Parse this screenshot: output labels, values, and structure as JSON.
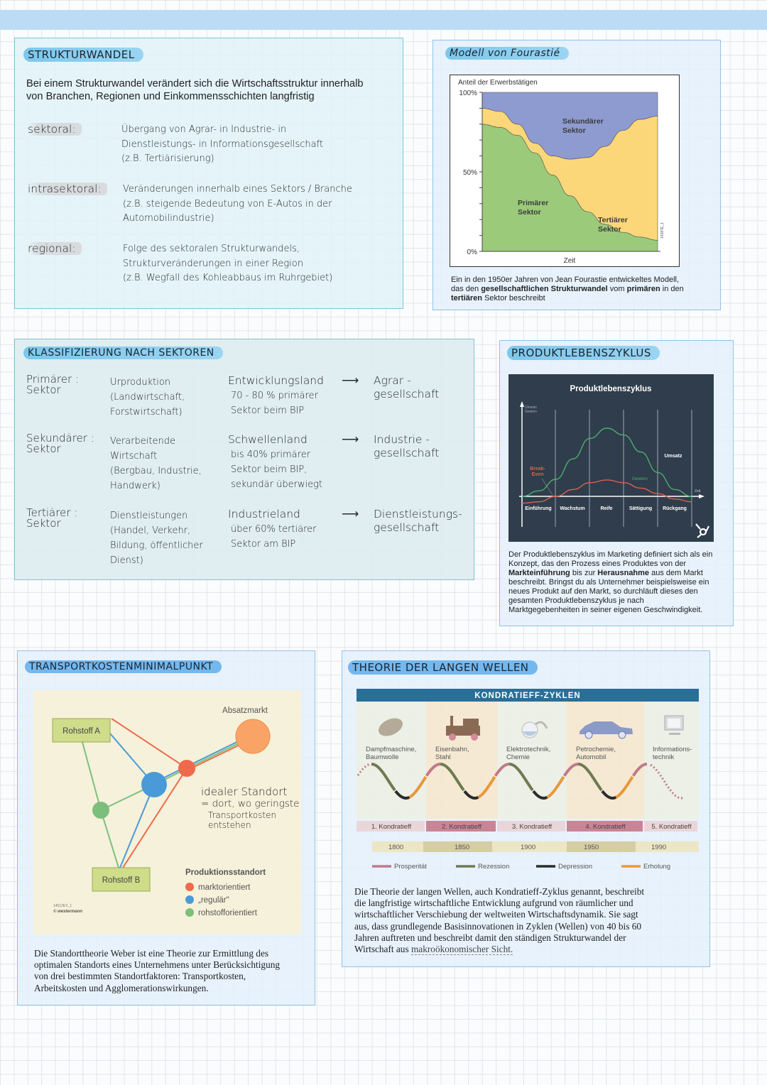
{
  "strukturwandel": {
    "title": "STRUKTURWANDEL",
    "intro": [
      "Bei einem Strukturwandel verändert sich die Wirtschaftsstruktur innerhalb",
      "von Branchen, Regionen und Einkommensschichten langfristig"
    ],
    "rows": [
      {
        "label": "sektoral:",
        "lines": [
          "Übergang von Agrar- in Industrie- in",
          "Dienstleistungs- in Informationsgesellschaft",
          "(z.B. Tertiärisierung)"
        ]
      },
      {
        "label": "intrasektoral:",
        "lines": [
          "Veränderungen innerhalb eines Sektors / Branche",
          "(z.B. steigende Bedeutung von E-Autos in der",
          "Automobilindustrie)"
        ]
      },
      {
        "label": "regional:",
        "lines": [
          "Folge des sektoralen Strukturwandels,",
          "Strukturveränderungen in einer Region",
          "(z.B. Wegfall des Kohleabbaus im Ruhrgebiet)"
        ]
      }
    ]
  },
  "fourastie": {
    "title": "Modell von Fourastié",
    "caption": {
      "l1": "Ein in den 1950er Jahren von Jean Fourastie entwickeltes Modell,",
      "l2a": "das den ",
      "l2b": "gesellschaftlichen Strukturwandel",
      "l2c": " vom ",
      "l2d": "primären",
      "l2e": " in den",
      "l3a": "tertiären",
      "l3b": " Sektor beschreibt"
    }
  },
  "klassifizierung": {
    "title": "KLASSIFIZIERUNG NACH SEKTOREN",
    "rows": [
      {
        "sektor": [
          "Primärer :",
          "Sektor"
        ],
        "beschreibung": [
          "Urproduktion",
          "(Landwirtschaft,",
          "Forstwirtschaft)"
        ],
        "land": "Entwicklungsland",
        "land_detail": [
          "70 - 80 % primärer",
          "Sektor beim BIP"
        ],
        "gesellschaft": [
          "Agrar -",
          "gesellschaft"
        ]
      },
      {
        "sektor": [
          "Sekundärer :",
          "Sektor"
        ],
        "beschreibung": [
          "Verarbeitende",
          "Wirtschaft",
          "(Bergbau, Industrie,",
          "Handwerk)"
        ],
        "land": "Schwellenland",
        "land_detail": [
          "bis 40% primärer",
          "Sektor beim BIP,",
          "sekundär überwiegt"
        ],
        "gesellschaft": [
          "Industrie -",
          "gesellschaft"
        ]
      },
      {
        "sektor": [
          "Tertiärer :",
          "Sektor"
        ],
        "beschreibung": [
          "Dienstleistungen",
          "(Handel, Verkehr,",
          "Bildung, öffentlicher",
          "Dienst)"
        ],
        "land": "Industrieland",
        "land_detail": [
          "über 60% tertiärer",
          "Sektor am BIP"
        ],
        "gesellschaft": [
          "Dienstleistungs-",
          "gesellschaft"
        ]
      }
    ],
    "arrow": "⟶"
  },
  "produktlebenszyklus": {
    "title": "PRODUKTLEBENSZYKLUS",
    "text": {
      "l1": "Der Produktlebenszyklus im Marketing definiert sich als ein",
      "l2": "Konzept, das den Prozess eines Produktes von der",
      "l3a": "Markteinführung",
      "l3b": " bis zur ",
      "l3c": "Herausnahme",
      "l3d": " aus dem Markt",
      "l4": "beschreibt. Bringst du als Unternehmer beispielsweise ein",
      "l5": "neues Produkt auf den Markt, so durchläuft dieses den",
      "l6": "gesamten Produktlebenszyklus je nach",
      "l7": "Marktgegebenheiten in seiner eigenen Geschwindigkeit."
    }
  },
  "transport": {
    "title": "TRANSPORTKOSTENMINIMALPUNKT",
    "rohstoff_a": "Rohstoff A",
    "rohstoff_b": "Rohstoff B",
    "absatzmarkt": "Absatzmarkt",
    "legend_title": "Produktionsstandort",
    "legend": [
      {
        "label": "marktorientiert",
        "color": "#ef6a4c"
      },
      {
        "label": "„regulär\"",
        "color": "#4a9ad8"
      },
      {
        "label": "rohstofforientiert",
        "color": "#7cbf7c"
      }
    ],
    "code": "14512EX_1",
    "copyright": "© westermann",
    "note": [
      "idealer Standort",
      "= dort, wo geringste",
      "Transportkosten",
      "entstehen"
    ],
    "text": [
      "Die Standorttheorie Weber ist eine Theorie zur Ermittlung des",
      "optimalen Standorts eines Unternehmens unter Berücksichtigung",
      "von drei bestimmten Standortfaktoren: Transportkosten,",
      "Arbeitskosten und Agglomerationswirkungen."
    ]
  },
  "wellen": {
    "title": "THEORIE DER LANGEN WELLEN",
    "text": [
      "Die Theorie der langen Wellen, auch Kondratieff-Zyklus genannt, beschreibt",
      "die langfristige wirtschaftliche Entwicklung aufgrund von räumlicher und",
      "wirtschaftlicher Verschiebung der weltweiten Wirtschaftsdynamik. Sie sagt",
      "aus, dass grundlegende Basisinnovationen in Zyklen (Wellen) von 40 bis 60",
      "Jahren auftreten und beschreibt damit den ständigen Strukturwandel der"
    ],
    "text_last": "Wirtschaft aus ",
    "text_link": "makroökonomischer Sicht."
  },
  "chart_data": [
    {
      "type": "area",
      "stacked": true,
      "ylabel": "Anteil der Erwerbstätigen",
      "xlabel": "Zeit",
      "yticks": [
        "100%",
        "50%",
        "0%"
      ],
      "ylim": [
        0,
        100
      ],
      "code": "14387E_1",
      "series": [
        {
          "name": "Primärer Sektor",
          "color": "#9bcb7a",
          "values": [
            80,
            78,
            73,
            62,
            48,
            35,
            25,
            17,
            12,
            9,
            7
          ]
        },
        {
          "name": "Tertiärer Sektor",
          "color": "#fbd779",
          "values": [
            10,
            10,
            7,
            6,
            12,
            23,
            34,
            49,
            64,
            74,
            78
          ]
        },
        {
          "name": "Sekundärer Sektor",
          "color": "#8e9bd0",
          "values": [
            10,
            12,
            20,
            32,
            40,
            42,
            41,
            34,
            24,
            17,
            15
          ]
        }
      ]
    },
    {
      "type": "line",
      "title": "Produktlebenszyklus",
      "ylabel": "Umsatz Gewinn",
      "xlabel": "Zeit",
      "phases": [
        "Einführung",
        "Wachstum",
        "Reife",
        "Sättigung",
        "Rückgang"
      ],
      "annotation": "Break-Even",
      "logo": "hubspot-icon",
      "series": [
        {
          "name": "Umsatz",
          "color": "#4caf6e",
          "values": [
            0,
            8,
            25,
            55,
            85,
            100,
            90,
            65,
            35,
            10,
            0
          ]
        },
        {
          "name": "Gewinn",
          "color": "#e0604c",
          "values": [
            -10,
            -8,
            0,
            10,
            20,
            24,
            20,
            12,
            4,
            -4,
            -8
          ]
        }
      ]
    },
    {
      "type": "timeline",
      "title": "KONDRATIEFF-ZYKLEN",
      "cycles": [
        {
          "label": "1. Kondratieff",
          "innovation": [
            "Dampfmaschine,",
            "Baumwolle"
          ]
        },
        {
          "label": "2. Kondratieff",
          "innovation": [
            "Eisenbahn,",
            "Stahl"
          ]
        },
        {
          "label": "3. Kondratieff",
          "innovation": [
            "Elektrotechnik,",
            "Chemie"
          ]
        },
        {
          "label": "4. Kondratieff",
          "innovation": [
            "Petrochemie,",
            "Automobil"
          ]
        },
        {
          "label": "5. Kondratieff",
          "innovation": [
            "Informations-",
            "technik"
          ]
        }
      ],
      "years": [
        "1800",
        "1850",
        "1900",
        "1950",
        "1990"
      ],
      "legend": [
        {
          "label": "Prosperität",
          "color": "#c07a8c"
        },
        {
          "label": "Rezession",
          "color": "#6f7a52"
        },
        {
          "label": "Depression",
          "color": "#2b2b2b"
        },
        {
          "label": "Erholung",
          "color": "#e8983a"
        }
      ]
    }
  ]
}
